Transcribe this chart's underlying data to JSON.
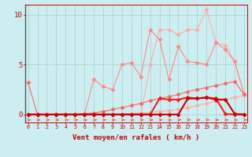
{
  "x": [
    0,
    1,
    2,
    3,
    4,
    5,
    6,
    7,
    8,
    9,
    10,
    11,
    12,
    13,
    14,
    15,
    16,
    17,
    18,
    19,
    20,
    21,
    22,
    23
  ],
  "background_color": "#cceef0",
  "grid_color": "#aacccc",
  "xlabel": "Vent moyen/en rafales ( km/h )",
  "yticks": [
    0,
    5,
    10
  ],
  "xlim": [
    -0.3,
    23.3
  ],
  "ylim": [
    -0.8,
    11.0
  ],
  "line_color_lightest": "#ffaaaa",
  "line_color_light": "#ff8888",
  "line_color_medium": "#ff6666",
  "line_color_dark": "#ee2222",
  "line_color_darkest": "#cc0000",
  "arrow_color": "#ff4444",
  "line1_y": [
    3.2,
    0.0,
    0.0,
    0.0,
    0.0,
    0.0,
    0.1,
    0.15,
    0.3,
    0.5,
    0.7,
    0.9,
    1.1,
    1.4,
    1.6,
    1.8,
    2.0,
    2.3,
    2.5,
    2.7,
    2.9,
    3.1,
    3.3,
    2.0
  ],
  "line2_y": [
    0.0,
    0.0,
    0.0,
    0.0,
    0.0,
    0.0,
    0.0,
    0.0,
    0.0,
    0.0,
    0.0,
    0.1,
    0.15,
    0.2,
    0.3,
    0.4,
    0.5,
    0.7,
    0.9,
    1.1,
    1.3,
    1.5,
    1.7,
    1.9
  ],
  "line3_y": [
    0.0,
    0.0,
    0.0,
    0.0,
    0.0,
    0.0,
    0.0,
    3.5,
    2.8,
    2.5,
    5.0,
    5.2,
    3.8,
    8.5,
    7.5,
    3.5,
    6.8,
    5.3,
    5.2,
    5.0,
    7.2,
    6.5,
    5.3,
    2.0
  ],
  "line4_y": [
    0.0,
    0.0,
    0.0,
    0.0,
    0.0,
    0.0,
    0.0,
    0.0,
    0.0,
    0.0,
    0.0,
    0.0,
    0.0,
    5.0,
    8.5,
    8.5,
    8.0,
    8.5,
    8.5,
    10.5,
    7.2,
    6.9,
    5.3,
    2.0
  ],
  "line5_y": [
    0.0,
    0.0,
    0.0,
    0.0,
    0.0,
    0.0,
    0.0,
    0.0,
    0.0,
    0.0,
    0.0,
    0.0,
    0.0,
    0.0,
    1.6,
    1.5,
    1.5,
    1.7,
    1.6,
    1.7,
    1.6,
    0.05,
    0.0,
    0.0
  ],
  "line6_y": [
    0.0,
    0.0,
    0.0,
    0.0,
    0.0,
    0.0,
    0.0,
    0.0,
    0.0,
    0.0,
    0.0,
    0.0,
    0.0,
    0.0,
    0.0,
    0.0,
    0.0,
    1.6,
    1.6,
    1.7,
    1.5,
    1.5,
    0.05,
    0.0
  ]
}
